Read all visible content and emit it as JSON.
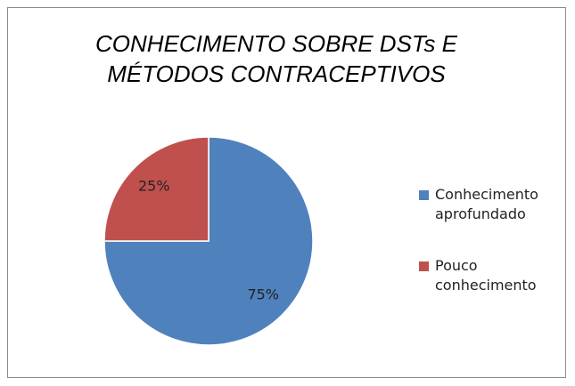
{
  "chart_data": {
    "type": "pie",
    "title": "CONHECIMENTO SOBRE DSTs E MÉTODOS CONTRACEPTIVOS",
    "categories": [
      "Conhecimento aprofundado",
      "Pouco conhecimento"
    ],
    "values": [
      75,
      25
    ],
    "value_labels": [
      "75%",
      "25%"
    ],
    "colors": [
      "#4f81bd",
      "#c0504d"
    ],
    "legend": "right"
  }
}
